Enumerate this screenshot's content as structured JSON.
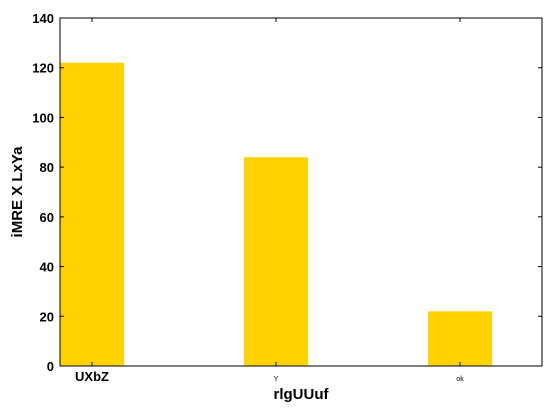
{
  "chart_data": {
    "type": "bar",
    "title": "",
    "xlabel": "rlgUUuf",
    "ylabel": "iMRE X LxYa",
    "categories": [
      "UXbZ",
      "Y",
      "ok"
    ],
    "values": [
      122,
      84,
      22
    ],
    "ylim": [
      0,
      140
    ],
    "yticks": [
      0,
      20,
      40,
      60,
      80,
      100,
      120,
      140
    ],
    "bar_color": "#ffd200",
    "grid": false,
    "legend": "none"
  }
}
